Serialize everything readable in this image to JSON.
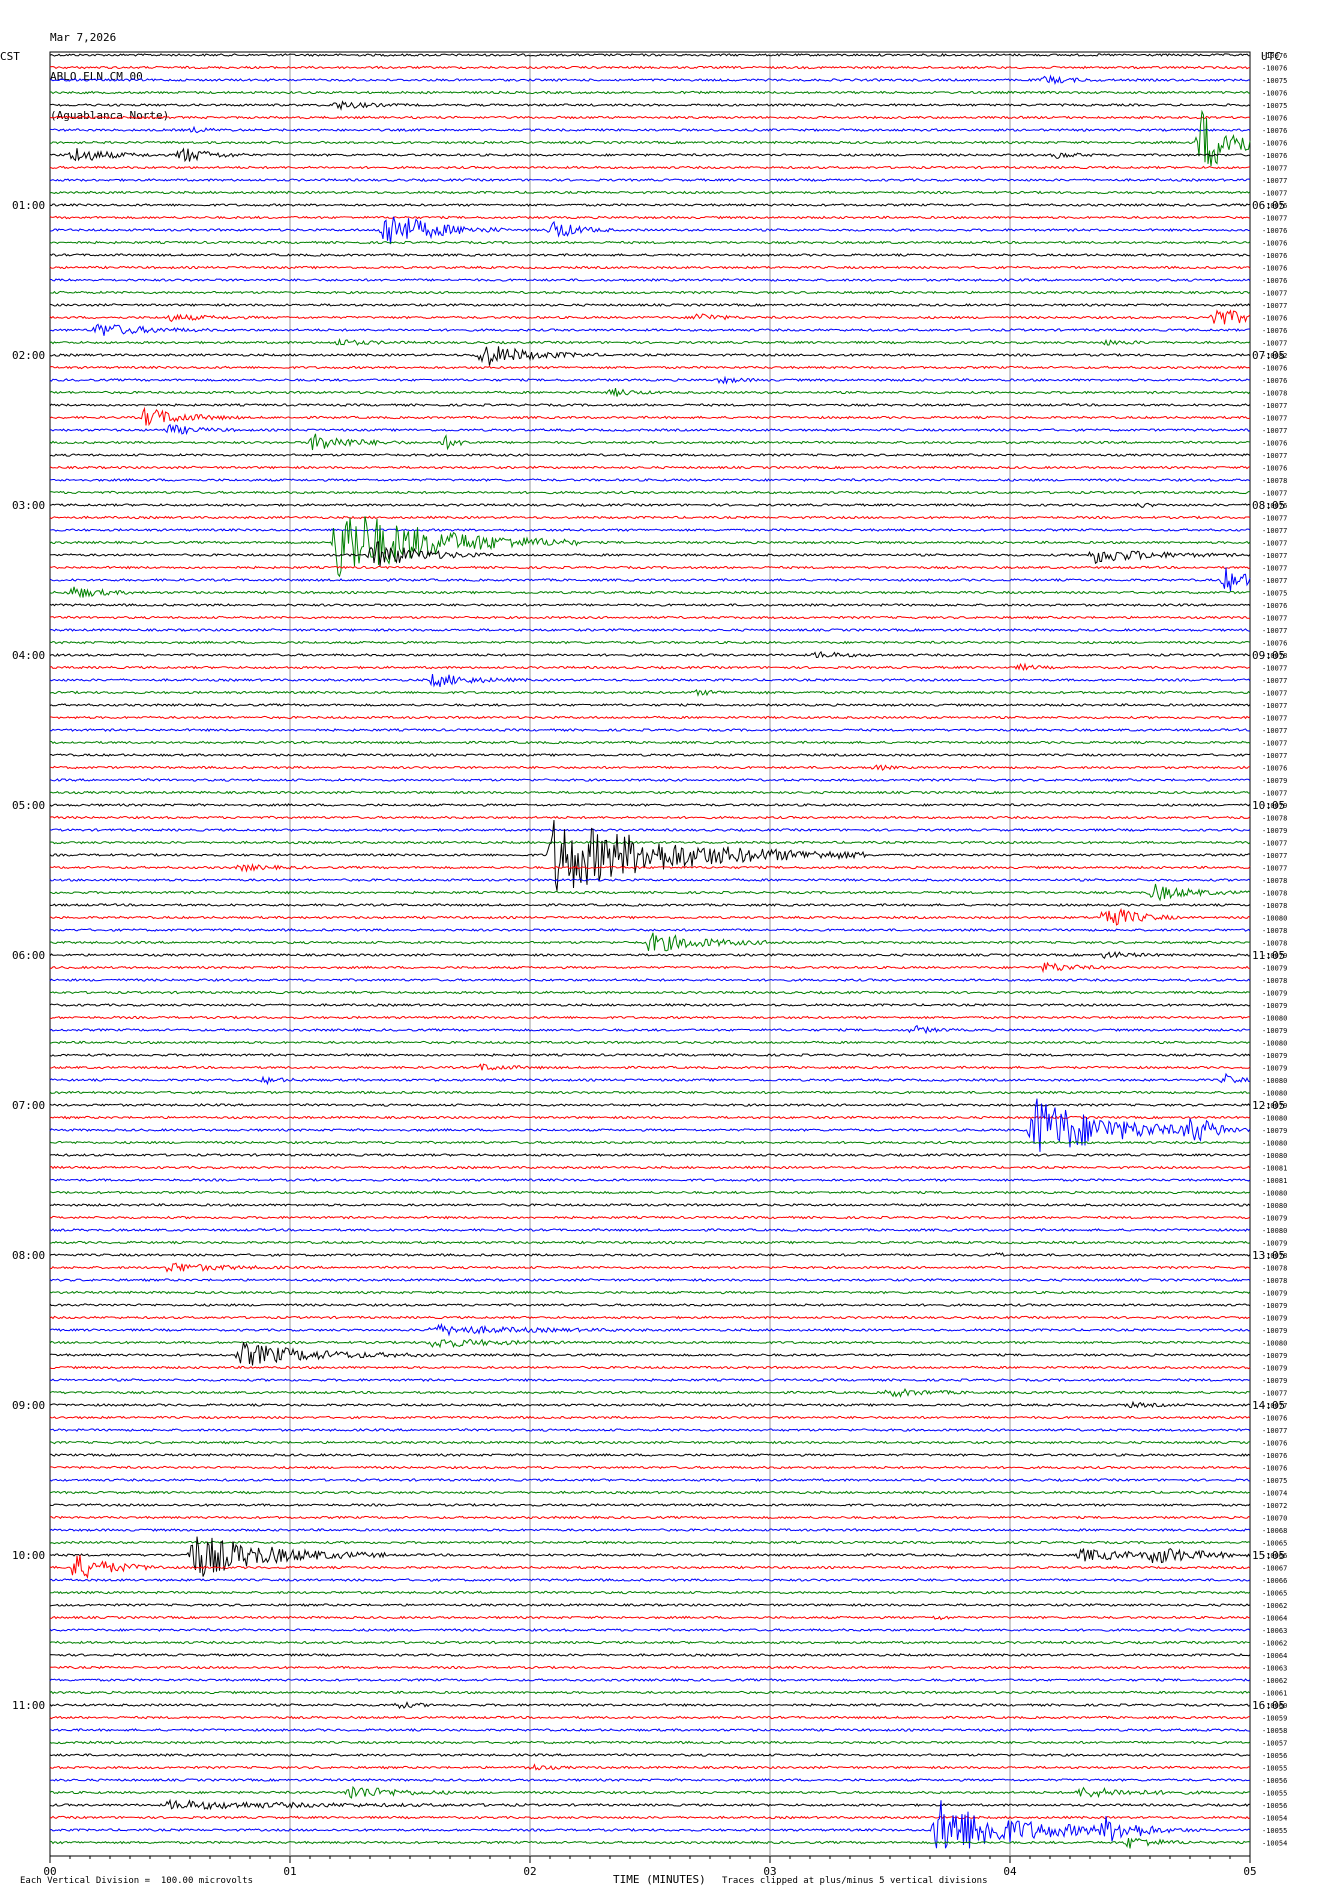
{
  "header": {
    "date": "Mar 7,2026",
    "station": "ABLO ELN CM 00",
    "site": "(Aguablanca Norte)"
  },
  "left_timezone": "CST",
  "right_timezone": "UTC",
  "xlabel": "TIME (MINUTES)",
  "footer_left": "Each Vertical Division =  100.00 microvolts",
  "footer_right": "Traces clipped at plus/minus 5 vertical divisions",
  "colors": {
    "cycle": [
      "#000000",
      "#ff0000",
      "#0000ff",
      "#008000"
    ],
    "grid": "#999999"
  },
  "chart_data": {
    "type": "line",
    "title": "",
    "xlabel": "TIME (MINUTES)",
    "xlim": [
      0,
      5
    ],
    "x_ticks": [
      "00",
      "01",
      "02",
      "03",
      "04",
      "05"
    ],
    "rows": 144,
    "minutes_per_row": 5,
    "left_hour_labels": [
      "01:00",
      "02:00",
      "03:00",
      "04:00",
      "05:00",
      "06:00",
      "07:00",
      "08:00",
      "09:00",
      "10:00",
      "11:00"
    ],
    "right_hour_labels": [
      "06:05",
      "07:05",
      "08:05",
      "09:05",
      "10:05",
      "11:05",
      "12:05",
      "13:05",
      "14:05",
      "15:05",
      "16:05"
    ],
    "hour_label_rows": [
      12,
      24,
      36,
      48,
      60,
      72,
      84,
      96,
      108,
      120,
      132
    ],
    "offsets": [
      -10076,
      -10076,
      -10075,
      -10076,
      -10075,
      -10076,
      -10076,
      -10076,
      -10076,
      -10077,
      -10077,
      -10077,
      -10076,
      -10077,
      -10076,
      -10076,
      -10076,
      -10076,
      -10076,
      -10077,
      -10077,
      -10076,
      -10076,
      -10077,
      -10082,
      -10076,
      -10076,
      -10078,
      -10077,
      -10077,
      -10077,
      -10076,
      -10077,
      -10076,
      -10078,
      -10077,
      -10076,
      -10077,
      -10077,
      -10077,
      -10077,
      -10077,
      -10077,
      -10075,
      -10076,
      -10077,
      -10077,
      -10076,
      -10078,
      -10077,
      -10077,
      -10077,
      -10077,
      -10077,
      -10077,
      -10077,
      -10077,
      -10076,
      -10079,
      -10077,
      -10079,
      -10078,
      -10079,
      -10077,
      -10077,
      -10077,
      -10078,
      -10078,
      -10078,
      -10080,
      -10078,
      -10078,
      -10079,
      -10079,
      -10078,
      -10079,
      -10079,
      -10080,
      -10079,
      -10080,
      -10079,
      -10079,
      -10080,
      -10080,
      -10079,
      -10080,
      -10079,
      -10080,
      -10080,
      -10081,
      -10081,
      -10080,
      -10080,
      -10079,
      -10080,
      -10079,
      -10078,
      -10078,
      -10078,
      -10079,
      -10079,
      -10079,
      -10079,
      -10080,
      -10079,
      -10079,
      -10079,
      -10077,
      -10077,
      -10076,
      -10077,
      -10076,
      -10076,
      -10076,
      -10075,
      -10074,
      -10072,
      -10070,
      -10068,
      -10065,
      -10066,
      -10067,
      -10066,
      -10065,
      -10062,
      -10064,
      -10063,
      -10062,
      -10064,
      -10063,
      -10062,
      -10061,
      -10060,
      -10059,
      -10058,
      -10057,
      -10056,
      -10055,
      -10056,
      -10055,
      -10056,
      -10054,
      -10055,
      -10054
    ],
    "events": [
      {
        "row": 2,
        "minute": 4.15,
        "amp": 4,
        "dur": 0.25
      },
      {
        "row": 4,
        "minute": 1.2,
        "amp": 4,
        "dur": 0.3
      },
      {
        "row": 6,
        "minute": 0.6,
        "amp": 2,
        "dur": 0.2
      },
      {
        "row": 7,
        "minute": 4.8,
        "amp": 34,
        "dur": 0.4
      },
      {
        "row": 8,
        "minute": 0.1,
        "amp": 8,
        "dur": 0.35
      },
      {
        "row": 8,
        "minute": 0.55,
        "amp": 8,
        "dur": 0.3
      },
      {
        "row": 8,
        "minute": 4.2,
        "amp": 3,
        "dur": 0.2
      },
      {
        "row": 14,
        "minute": 1.4,
        "amp": 20,
        "dur": 0.5
      },
      {
        "row": 14,
        "minute": 2.1,
        "amp": 10,
        "dur": 0.25
      },
      {
        "row": 21,
        "minute": 0.5,
        "amp": 3,
        "dur": 0.4
      },
      {
        "row": 21,
        "minute": 2.7,
        "amp": 5,
        "dur": 0.2
      },
      {
        "row": 21,
        "minute": 4.85,
        "amp": 10,
        "dur": 0.4
      },
      {
        "row": 22,
        "minute": 0.2,
        "amp": 7,
        "dur": 0.5
      },
      {
        "row": 23,
        "minute": 1.2,
        "amp": 3,
        "dur": 0.3
      },
      {
        "row": 23,
        "minute": 4.4,
        "amp": 2,
        "dur": 0.3
      },
      {
        "row": 24,
        "minute": 1.8,
        "amp": 12,
        "dur": 0.5
      },
      {
        "row": 26,
        "minute": 2.8,
        "amp": 3,
        "dur": 0.2
      },
      {
        "row": 27,
        "minute": 2.35,
        "amp": 4,
        "dur": 0.2
      },
      {
        "row": 29,
        "minute": 0.4,
        "amp": 10,
        "dur": 0.4
      },
      {
        "row": 30,
        "minute": 0.5,
        "amp": 5,
        "dur": 0.3
      },
      {
        "row": 31,
        "minute": 1.1,
        "amp": 9,
        "dur": 0.4
      },
      {
        "row": 31,
        "minute": 1.65,
        "amp": 6,
        "dur": 0.15
      },
      {
        "row": 36,
        "minute": 4.55,
        "amp": 2,
        "dur": 0.1
      },
      {
        "row": 39,
        "minute": 1.2,
        "amp": 40,
        "dur": 1.0
      },
      {
        "row": 40,
        "minute": 1.35,
        "amp": 14,
        "dur": 0.5
      },
      {
        "row": 40,
        "minute": 4.35,
        "amp": 8,
        "dur": 0.6
      },
      {
        "row": 42,
        "minute": 4.9,
        "amp": 12,
        "dur": 0.3
      },
      {
        "row": 43,
        "minute": 0.1,
        "amp": 6,
        "dur": 0.3
      },
      {
        "row": 48,
        "minute": 3.2,
        "amp": 3,
        "dur": 0.3
      },
      {
        "row": 49,
        "minute": 4.05,
        "amp": 3,
        "dur": 0.15
      },
      {
        "row": 50,
        "minute": 1.6,
        "amp": 7,
        "dur": 0.4
      },
      {
        "row": 51,
        "minute": 2.7,
        "amp": 2,
        "dur": 0.3
      },
      {
        "row": 57,
        "minute": 3.45,
        "amp": 3,
        "dur": 0.1
      },
      {
        "row": 64,
        "minute": 2.1,
        "amp": 40,
        "dur": 1.3
      },
      {
        "row": 65,
        "minute": 0.8,
        "amp": 3,
        "dur": 0.3
      },
      {
        "row": 67,
        "minute": 4.6,
        "amp": 8,
        "dur": 0.4
      },
      {
        "row": 69,
        "minute": 4.4,
        "amp": 14,
        "dur": 0.3
      },
      {
        "row": 71,
        "minute": 2.5,
        "amp": 10,
        "dur": 0.6
      },
      {
        "row": 72,
        "minute": 4.4,
        "amp": 3,
        "dur": 0.3
      },
      {
        "row": 73,
        "minute": 4.15,
        "amp": 5,
        "dur": 0.3
      },
      {
        "row": 78,
        "minute": 3.6,
        "amp": 4,
        "dur": 0.2
      },
      {
        "row": 81,
        "minute": 1.8,
        "amp": 3,
        "dur": 0.3
      },
      {
        "row": 82,
        "minute": 0.9,
        "amp": 3,
        "dur": 0.2
      },
      {
        "row": 82,
        "minute": 4.9,
        "amp": 5,
        "dur": 0.15
      },
      {
        "row": 86,
        "minute": 4.1,
        "amp": 34,
        "dur": 0.8
      },
      {
        "row": 86,
        "minute": 4.75,
        "amp": 12,
        "dur": 0.3
      },
      {
        "row": 96,
        "minute": 3.95,
        "amp": 3,
        "dur": 0.05
      },
      {
        "row": 97,
        "minute": 0.5,
        "amp": 5,
        "dur": 0.5
      },
      {
        "row": 102,
        "minute": 1.6,
        "amp": 5,
        "dur": 0.9
      },
      {
        "row": 103,
        "minute": 1.6,
        "amp": 5,
        "dur": 0.6
      },
      {
        "row": 104,
        "minute": 0.8,
        "amp": 12,
        "dur": 0.8
      },
      {
        "row": 107,
        "minute": 3.5,
        "amp": 4,
        "dur": 0.4
      },
      {
        "row": 108,
        "minute": 4.5,
        "amp": 2,
        "dur": 0.3
      },
      {
        "row": 120,
        "minute": 0.6,
        "amp": 24,
        "dur": 0.8
      },
      {
        "row": 120,
        "minute": 4.3,
        "amp": 6,
        "dur": 0.6
      },
      {
        "row": 120,
        "minute": 4.6,
        "amp": 8,
        "dur": 0.5
      },
      {
        "row": 121,
        "minute": 0.1,
        "amp": 14,
        "dur": 0.4
      },
      {
        "row": 125,
        "minute": 3.7,
        "amp": 2,
        "dur": 0.1
      },
      {
        "row": 132,
        "minute": 1.45,
        "amp": 3,
        "dur": 0.2
      },
      {
        "row": 137,
        "minute": 2.0,
        "amp": 3,
        "dur": 0.2
      },
      {
        "row": 139,
        "minute": 1.25,
        "amp": 7,
        "dur": 0.5
      },
      {
        "row": 139,
        "minute": 4.3,
        "amp": 5,
        "dur": 0.6
      },
      {
        "row": 140,
        "minute": 0.5,
        "amp": 4,
        "dur": 1.5
      },
      {
        "row": 142,
        "minute": 3.7,
        "amp": 30,
        "dur": 0.9
      },
      {
        "row": 142,
        "minute": 4.4,
        "amp": 10,
        "dur": 0.4
      },
      {
        "row": 143,
        "minute": 4.5,
        "amp": 6,
        "dur": 0.3
      }
    ]
  }
}
